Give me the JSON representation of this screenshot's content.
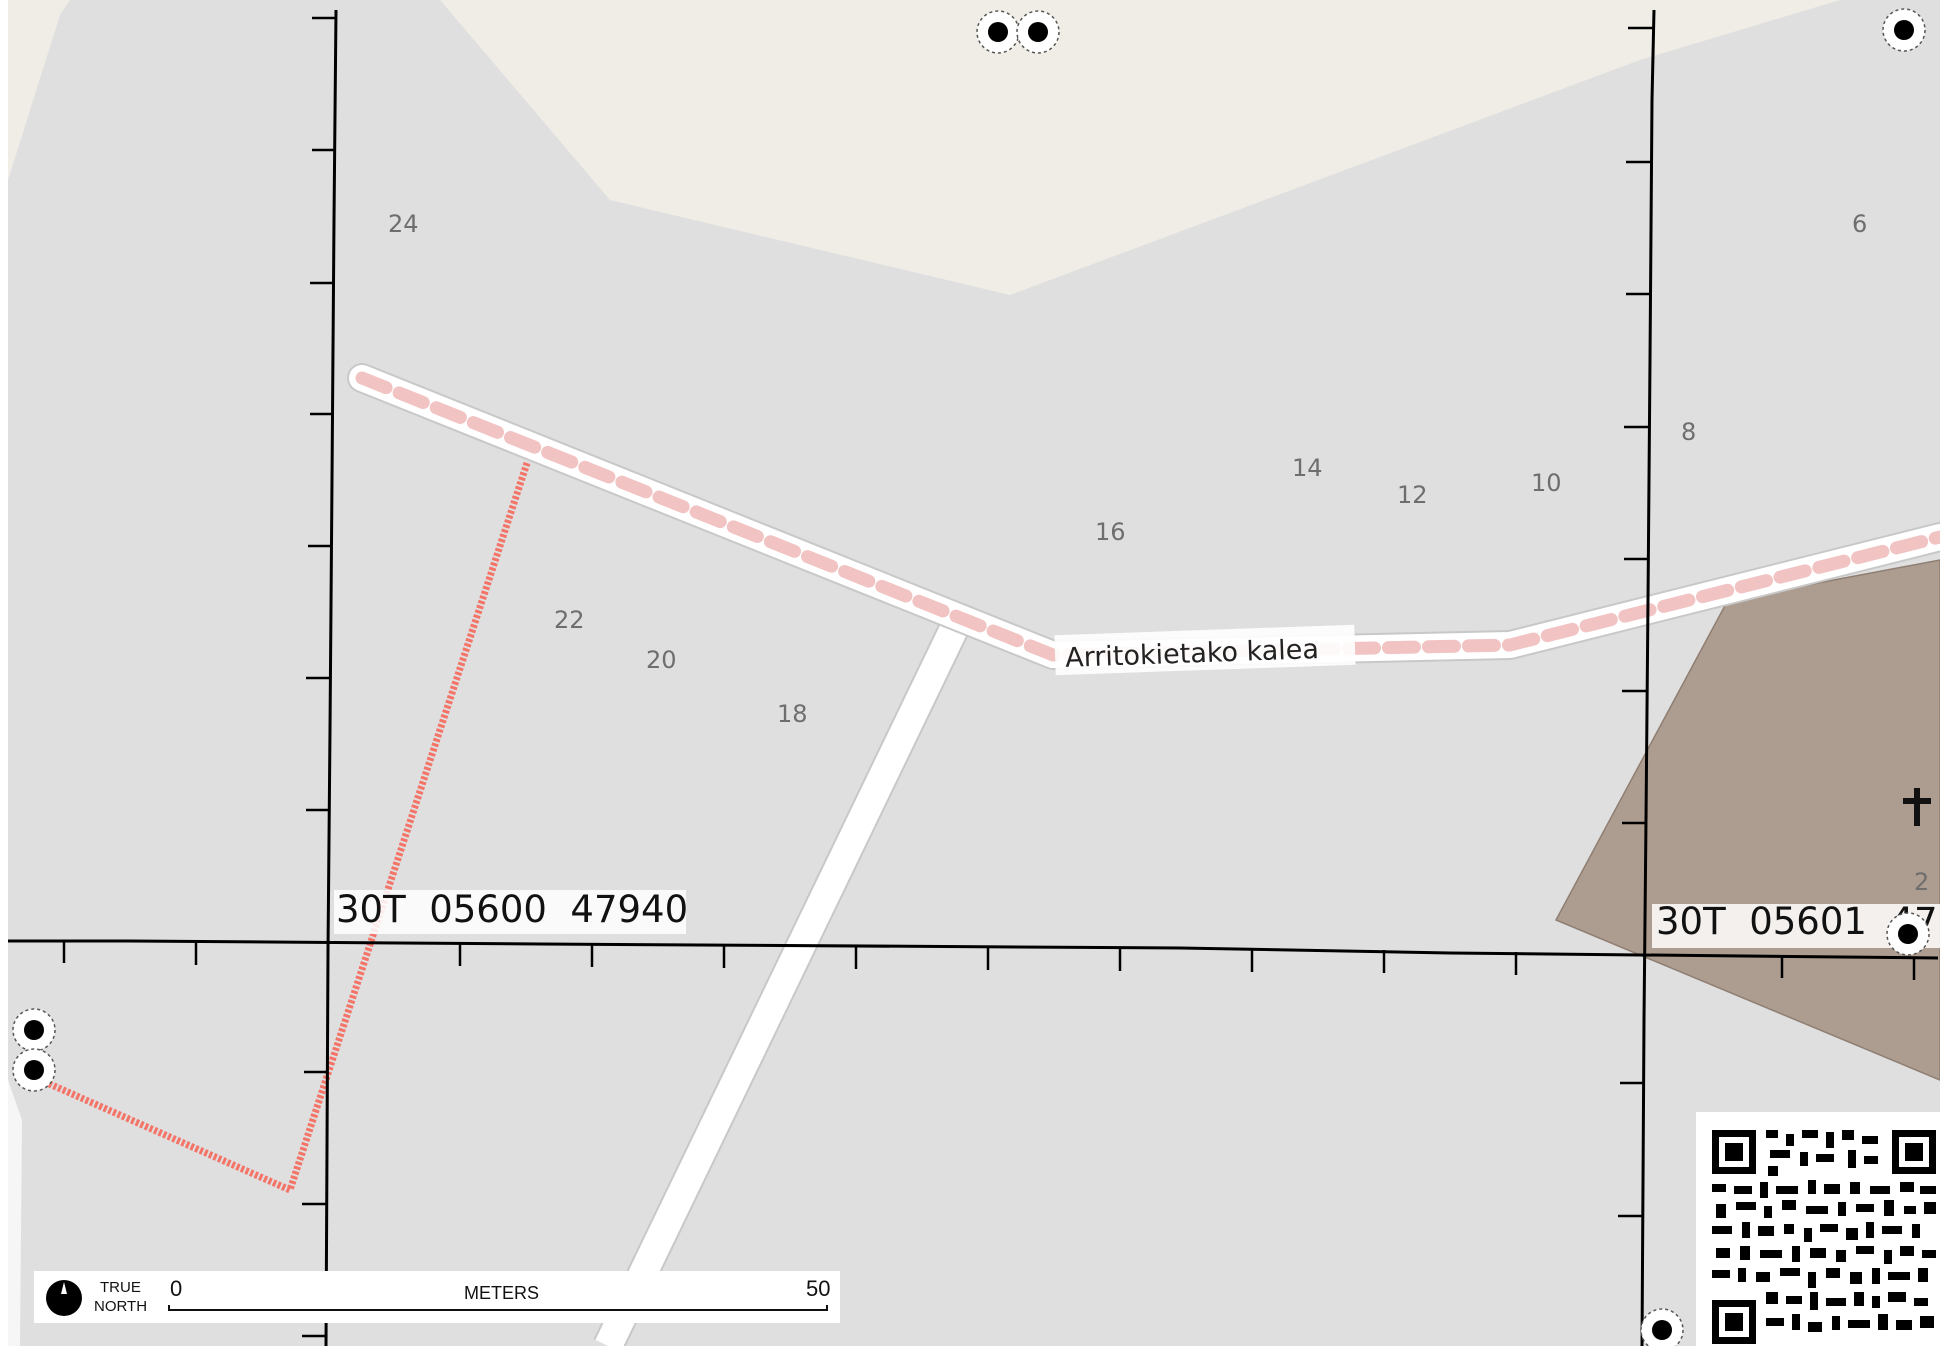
{
  "street": {
    "name": "Arritokietako kalea"
  },
  "house_numbers": [
    "24",
    "22",
    "20",
    "18",
    "16",
    "14",
    "12",
    "10",
    "8",
    "6",
    "2"
  ],
  "grid": {
    "label_main": "30T  05600  47940",
    "label_right": "30T  05601  47"
  },
  "scale_bar": {
    "north_label_top": "TRUE",
    "north_label_bottom": "NORTH",
    "start": "0",
    "unit": "METERS",
    "end": "50"
  },
  "symbols": [
    "church-cross-icon",
    "qr-code-icon",
    "point-marker-icon"
  ],
  "colors": {
    "background": "#dfdfdf",
    "landuse_area": "#f0ede7",
    "cemetery_area": "#ad9d90",
    "footway_dash": "#f2c3c3",
    "path_red": "#f47468",
    "grid_line": "#000000"
  }
}
